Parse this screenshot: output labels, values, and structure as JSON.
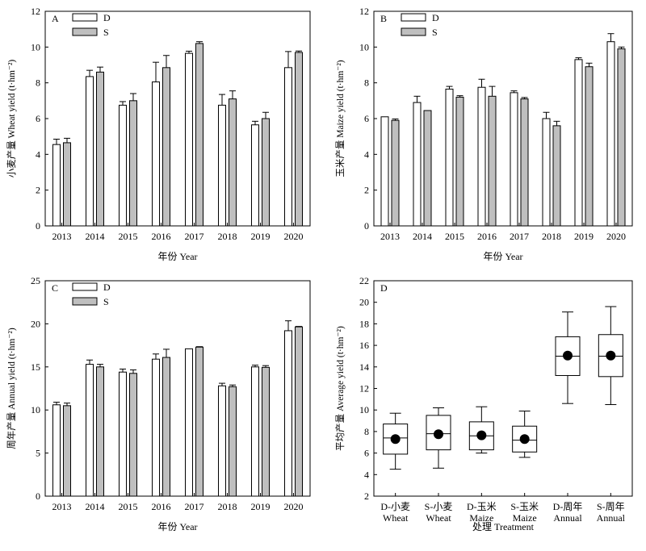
{
  "chart_data": [
    {
      "panel": "A",
      "type": "bar",
      "xlabel": "年份 Year",
      "ylabel": "小麦产量 Wheat yield (t·hm⁻²)",
      "ylim": [
        0,
        12
      ],
      "yticks": [
        0,
        2,
        4,
        6,
        8,
        10,
        12
      ],
      "categories": [
        "2013",
        "2014",
        "2015",
        "2016",
        "2017",
        "2018",
        "2019",
        "2020"
      ],
      "legend_position": "top-left",
      "series": [
        {
          "name": "D",
          "color": "#ffffff",
          "values": [
            4.55,
            8.35,
            6.75,
            8.05,
            9.65,
            6.75,
            5.65,
            8.85
          ],
          "err": [
            0.3,
            0.35,
            0.2,
            1.1,
            0.12,
            0.6,
            0.2,
            0.9
          ]
        },
        {
          "name": "S",
          "color": "#bfbfbf",
          "values": [
            4.65,
            8.6,
            7.0,
            8.85,
            10.2,
            7.1,
            6.0,
            9.7
          ],
          "err": [
            0.25,
            0.28,
            0.4,
            0.68,
            0.1,
            0.45,
            0.35,
            0.08
          ]
        }
      ]
    },
    {
      "panel": "B",
      "type": "bar",
      "xlabel": "年份 Year",
      "ylabel": "玉米产量 Maize yield (t·hm⁻²)",
      "ylim": [
        0,
        12
      ],
      "yticks": [
        0,
        2,
        4,
        6,
        8,
        10,
        12
      ],
      "categories": [
        "2013",
        "2014",
        "2015",
        "2016",
        "2017",
        "2018",
        "2019",
        "2020"
      ],
      "legend_position": "top-left",
      "series": [
        {
          "name": "D",
          "color": "#ffffff",
          "values": [
            6.1,
            6.9,
            7.65,
            7.75,
            7.45,
            6.0,
            9.3,
            10.3
          ],
          "err": [
            0.0,
            0.35,
            0.15,
            0.45,
            0.1,
            0.35,
            0.1,
            0.45
          ]
        },
        {
          "name": "S",
          "color": "#bfbfbf",
          "values": [
            5.9,
            6.45,
            7.2,
            7.25,
            7.1,
            5.6,
            8.9,
            9.9
          ],
          "err": [
            0.08,
            0.0,
            0.08,
            0.55,
            0.08,
            0.25,
            0.2,
            0.1
          ]
        }
      ]
    },
    {
      "panel": "C",
      "type": "bar",
      "xlabel": "年份 Year",
      "ylabel": "周年产量 Annual yield (t·hm⁻²)",
      "ylim": [
        0,
        25
      ],
      "yticks": [
        0,
        5,
        10,
        15,
        20,
        25
      ],
      "categories": [
        "2013",
        "2014",
        "2015",
        "2016",
        "2017",
        "2018",
        "2019",
        "2020"
      ],
      "legend_position": "top-left",
      "series": [
        {
          "name": "D",
          "color": "#ffffff",
          "values": [
            10.6,
            15.3,
            14.4,
            15.9,
            17.1,
            12.8,
            15.0,
            19.2
          ],
          "err": [
            0.3,
            0.5,
            0.35,
            0.6,
            0.0,
            0.3,
            0.2,
            1.15
          ]
        },
        {
          "name": "S",
          "color": "#bfbfbf",
          "values": [
            10.5,
            15.0,
            14.25,
            16.1,
            17.3,
            12.7,
            14.95,
            19.65
          ],
          "err": [
            0.3,
            0.3,
            0.4,
            0.95,
            0.05,
            0.2,
            0.2,
            0.05
          ]
        }
      ]
    },
    {
      "panel": "D",
      "type": "box",
      "xlabel": "处理 Treatment",
      "ylabel": "平均产量 Average yield (t·hm⁻²)",
      "ylim": [
        2,
        22
      ],
      "yticks": [
        2,
        4,
        6,
        8,
        10,
        12,
        14,
        16,
        18,
        20,
        22
      ],
      "categories": [
        [
          "D-小麦",
          "Wheat"
        ],
        [
          "S-小麦",
          "Wheat"
        ],
        [
          "D-玉米",
          "Maize"
        ],
        [
          "S-玉米",
          "Maize"
        ],
        [
          "D-周年",
          "Annual"
        ],
        [
          "S-周年",
          "Annual"
        ]
      ],
      "boxes": [
        {
          "min": 4.5,
          "q1": 5.9,
          "median": 7.4,
          "q3": 8.7,
          "max": 9.7,
          "mean": 7.3
        },
        {
          "min": 4.6,
          "q1": 6.3,
          "median": 7.8,
          "q3": 9.5,
          "max": 10.2,
          "mean": 7.75
        },
        {
          "min": 6.0,
          "q1": 6.3,
          "median": 7.6,
          "q3": 8.9,
          "max": 10.3,
          "mean": 7.65
        },
        {
          "min": 5.6,
          "q1": 6.1,
          "median": 7.2,
          "q3": 8.5,
          "max": 9.9,
          "mean": 7.3
        },
        {
          "min": 10.6,
          "q1": 13.2,
          "median": 15.0,
          "q3": 16.8,
          "max": 19.1,
          "mean": 15.05
        },
        {
          "min": 10.5,
          "q1": 13.1,
          "median": 15.0,
          "q3": 17.0,
          "max": 19.6,
          "mean": 15.05
        }
      ]
    }
  ]
}
